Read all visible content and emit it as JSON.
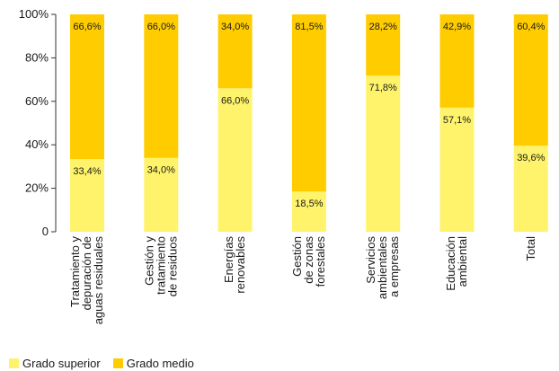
{
  "chart_data": {
    "type": "bar",
    "stacked": true,
    "categories": [
      [
        "Tratamiento y",
        "depuración de",
        "aguas residuales"
      ],
      [
        "Gestión y",
        "tratamiento",
        "de residuos"
      ],
      [
        "Energías",
        "renovables"
      ],
      [
        "Gestión",
        "de zonas",
        "forestales"
      ],
      [
        "Servicios",
        "ambientales",
        "a empresas"
      ],
      [
        "Educación",
        "ambiental"
      ],
      [
        "Total"
      ]
    ],
    "series": [
      {
        "name": "Grado superior",
        "color": "#FFF36B",
        "values": [
          33.4,
          34.0,
          66.0,
          18.5,
          71.8,
          57.1,
          39.6
        ],
        "labels": [
          "33,4%",
          "34,0%",
          "66,0%",
          "18,5%",
          "71,8%",
          "57,1%",
          "39,6%"
        ]
      },
      {
        "name": "Grado medio",
        "color": "#FFCC00",
        "values": [
          66.6,
          66.0,
          34.0,
          81.5,
          28.2,
          42.9,
          60.4
        ],
        "labels": [
          "66,6%",
          "66,0%",
          "34,0%",
          "81,5%",
          "28,2%",
          "42,9%",
          "60,4%"
        ]
      }
    ],
    "ylim": [
      0,
      100
    ],
    "yticks": [
      0,
      20,
      40,
      60,
      80,
      100
    ],
    "ytick_labels": [
      "0",
      "20%",
      "40%",
      "60%",
      "80%",
      "100%"
    ],
    "grid": false,
    "legend_position": "bottom-left"
  }
}
